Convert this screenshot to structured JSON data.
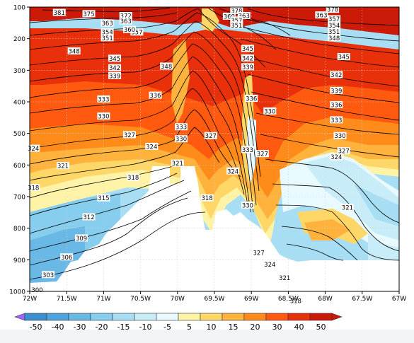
{
  "chart_data": {
    "type": "heatmap",
    "title": "",
    "xlabel": "",
    "ylabel": "",
    "x_ticks": [
      "72W",
      "71.5W",
      "71W",
      "70.5W",
      "70W",
      "69.5W",
      "69W",
      "68.5W",
      "68W",
      "67.5W",
      "67W"
    ],
    "x_values": [
      -72,
      -71.5,
      -71,
      -70.5,
      -70,
      -69.5,
      -69,
      -68.5,
      -68,
      -67.5,
      -67
    ],
    "xlim": [
      -72,
      -67
    ],
    "y_ticks": [
      "100",
      "200",
      "300",
      "400",
      "500",
      "600",
      "700",
      "800",
      "900",
      "1000"
    ],
    "y_values": [
      100,
      200,
      300,
      400,
      500,
      600,
      700,
      800,
      900,
      1000
    ],
    "ylim": [
      1000,
      100
    ],
    "y_inverted": true,
    "grid": true,
    "colorbar": {
      "labels": [
        "-50",
        "-40",
        "-30",
        "-20",
        "-15",
        "-10",
        "-5",
        "5",
        "10",
        "15",
        "20",
        "30",
        "40",
        "50"
      ],
      "levels": [
        -50,
        -40,
        -30,
        -20,
        -15,
        -10,
        -5,
        5,
        10,
        15,
        20,
        30,
        40,
        50
      ],
      "colors": [
        "#9966ff",
        "#3a8fd0",
        "#4fa3dc",
        "#6ab8e6",
        "#87cdee",
        "#a8def4",
        "#c9edf8",
        "#e9faff",
        "#fff3a8",
        "#ffd766",
        "#ffb23c",
        "#ff8c1a",
        "#ff5a10",
        "#e8300a",
        "#cc1a08"
      ],
      "placement": "bottom"
    },
    "contour_labels": [
      {
        "text": "381",
        "x": -71.6,
        "p": 118
      },
      {
        "text": "375",
        "x": -71.2,
        "p": 122
      },
      {
        "text": "372",
        "x": -70.7,
        "p": 128
      },
      {
        "text": "363",
        "x": -70.7,
        "p": 145
      },
      {
        "text": "363",
        "x": -70.95,
        "p": 152
      },
      {
        "text": "357",
        "x": -70.55,
        "p": 180
      },
      {
        "text": "354",
        "x": -70.95,
        "p": 180
      },
      {
        "text": "351",
        "x": -70.95,
        "p": 198
      },
      {
        "text": "360",
        "x": -70.65,
        "p": 172
      },
      {
        "text": "378",
        "x": -69.2,
        "p": 112
      },
      {
        "text": "369",
        "x": -69.3,
        "p": 130
      },
      {
        "text": "363",
        "x": -69.1,
        "p": 128
      },
      {
        "text": "357",
        "x": -69.2,
        "p": 142
      },
      {
        "text": "351",
        "x": -69.2,
        "p": 158
      },
      {
        "text": "378",
        "x": -67.9,
        "p": 108
      },
      {
        "text": "363",
        "x": -68.05,
        "p": 126
      },
      {
        "text": "357",
        "x": -67.88,
        "p": 138
      },
      {
        "text": "354",
        "x": -67.88,
        "p": 158
      },
      {
        "text": "351",
        "x": -67.88,
        "p": 178
      },
      {
        "text": "348",
        "x": -67.88,
        "p": 198
      },
      {
        "text": "348",
        "x": -71.4,
        "p": 240
      },
      {
        "text": "345",
        "x": -70.85,
        "p": 263
      },
      {
        "text": "342",
        "x": -70.85,
        "p": 293
      },
      {
        "text": "339",
        "x": -70.85,
        "p": 318
      },
      {
        "text": "348",
        "x": -70.15,
        "p": 288
      },
      {
        "text": "345",
        "x": -69.05,
        "p": 232
      },
      {
        "text": "342",
        "x": -69.05,
        "p": 262
      },
      {
        "text": "339",
        "x": -69.05,
        "p": 290
      },
      {
        "text": "345",
        "x": -67.75,
        "p": 258
      },
      {
        "text": "342",
        "x": -67.85,
        "p": 315
      },
      {
        "text": "339",
        "x": -67.85,
        "p": 365
      },
      {
        "text": "336",
        "x": -67.85,
        "p": 410
      },
      {
        "text": "333",
        "x": -71.0,
        "p": 392
      },
      {
        "text": "330",
        "x": -71.0,
        "p": 446
      },
      {
        "text": "336",
        "x": -70.3,
        "p": 380
      },
      {
        "text": "336",
        "x": -69.0,
        "p": 390
      },
      {
        "text": "330",
        "x": -68.75,
        "p": 430
      },
      {
        "text": "333",
        "x": -67.85,
        "p": 458
      },
      {
        "text": "330",
        "x": -67.8,
        "p": 508
      },
      {
        "text": "327",
        "x": -67.75,
        "p": 556
      },
      {
        "text": "324",
        "x": -67.85,
        "p": 575
      },
      {
        "text": "327",
        "x": -70.65,
        "p": 505
      },
      {
        "text": "324",
        "x": -70.35,
        "p": 542
      },
      {
        "text": "321",
        "x": -70.0,
        "p": 595
      },
      {
        "text": "333",
        "x": -69.95,
        "p": 480
      },
      {
        "text": "330",
        "x": -69.95,
        "p": 518
      },
      {
        "text": "327",
        "x": -69.55,
        "p": 508
      },
      {
        "text": "333",
        "x": -69.05,
        "p": 552
      },
      {
        "text": "327",
        "x": -68.85,
        "p": 565
      },
      {
        "text": "324",
        "x": -69.25,
        "p": 620
      },
      {
        "text": "324",
        "x": -71.95,
        "p": 548
      },
      {
        "text": "321",
        "x": -71.55,
        "p": 603
      },
      {
        "text": "318",
        "x": -70.6,
        "p": 640
      },
      {
        "text": "318",
        "x": -71.95,
        "p": 672
      },
      {
        "text": "315",
        "x": -71.0,
        "p": 705
      },
      {
        "text": "312",
        "x": -71.2,
        "p": 765
      },
      {
        "text": "318",
        "x": -69.6,
        "p": 705
      },
      {
        "text": "330",
        "x": -69.05,
        "p": 728
      },
      {
        "text": "321",
        "x": -67.7,
        "p": 735
      },
      {
        "text": "309",
        "x": -71.3,
        "p": 832
      },
      {
        "text": "306",
        "x": -71.5,
        "p": 892
      },
      {
        "text": "303",
        "x": -71.75,
        "p": 948
      },
      {
        "text": "300",
        "x": -71.9,
        "p": 995
      },
      {
        "text": "327",
        "x": -68.9,
        "p": 878
      },
      {
        "text": "324",
        "x": -68.75,
        "p": 915
      },
      {
        "text": "321",
        "x": -68.55,
        "p": 958
      },
      {
        "text": "318",
        "x": -68.4,
        "p": 1030
      }
    ]
  }
}
